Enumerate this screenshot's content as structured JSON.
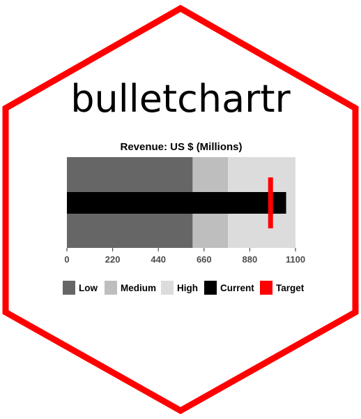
{
  "logo": {
    "text": "bulletchartr",
    "border_color": "#ff0000"
  },
  "chart_data": {
    "type": "bar",
    "subtype": "bullet",
    "title": "Revenue: US $ (Millions)",
    "xlim": [
      0,
      1100
    ],
    "ticks": [
      0,
      220,
      440,
      660,
      880,
      1100
    ],
    "tick_labels": [
      "0",
      "220",
      "440",
      "660",
      "880",
      "1100"
    ],
    "ranges": [
      {
        "name": "Low",
        "from": 0,
        "to": 605,
        "color": "#666666"
      },
      {
        "name": "Medium",
        "from": 605,
        "to": 775,
        "color": "#bebebe"
      },
      {
        "name": "High",
        "from": 775,
        "to": 1100,
        "color": "#dcdcdc"
      }
    ],
    "current": {
      "name": "Current",
      "value": 1055,
      "color": "#000000"
    },
    "target": {
      "name": "Target",
      "value": 980,
      "color": "#ff0000"
    },
    "legend": {
      "position": "bottom",
      "items": [
        {
          "label": "Low",
          "color": "#666666"
        },
        {
          "label": "Medium",
          "color": "#bebebe"
        },
        {
          "label": "High",
          "color": "#dcdcdc"
        },
        {
          "label": "Current",
          "color": "#000000"
        },
        {
          "label": "Target",
          "color": "#ff0000"
        }
      ]
    }
  }
}
